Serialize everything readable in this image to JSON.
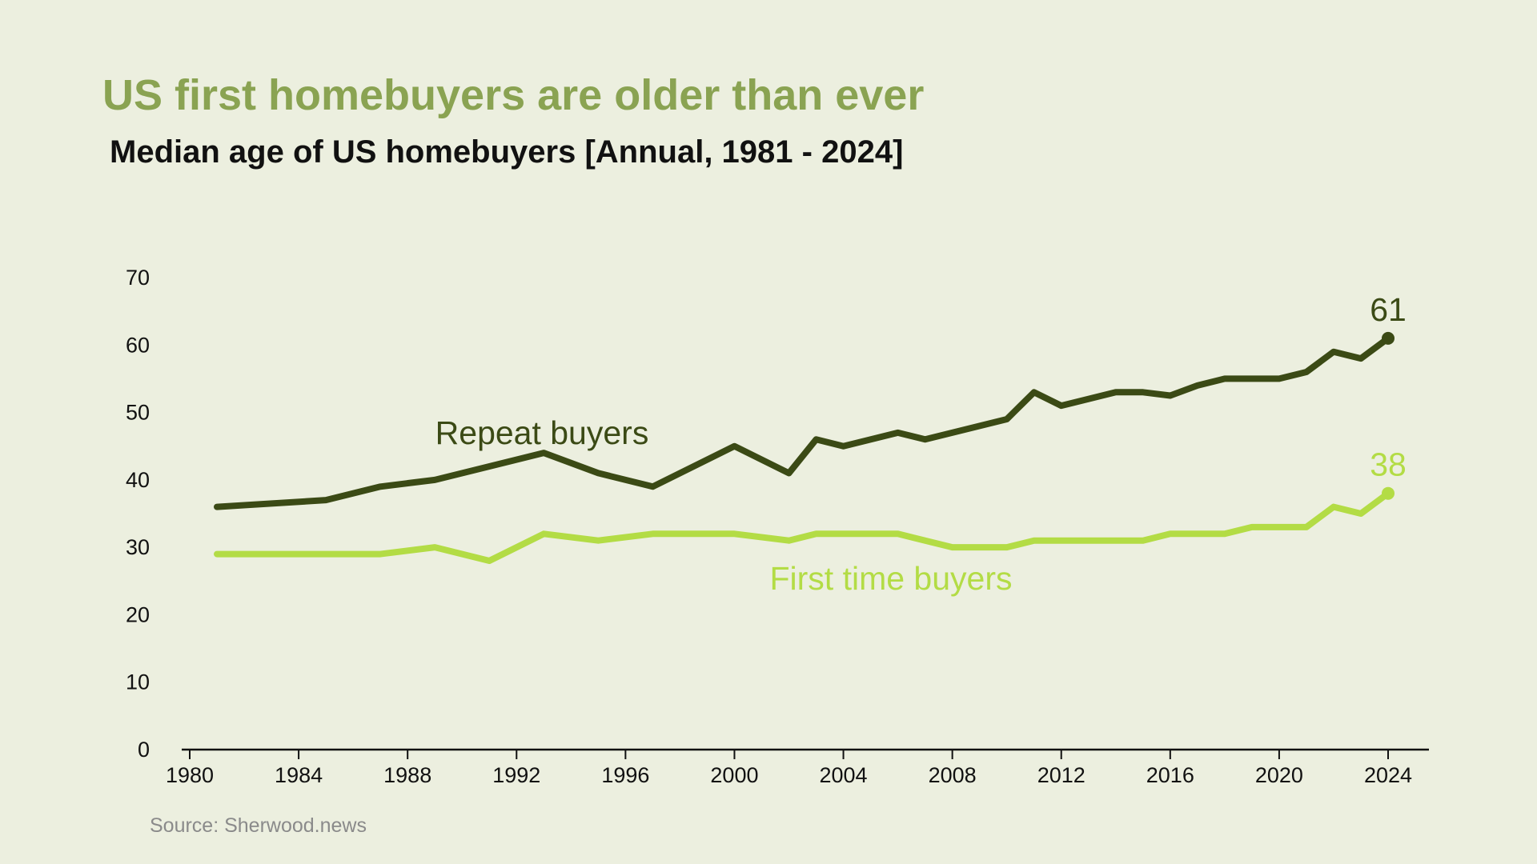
{
  "title": "US first homebuyers are older than ever",
  "subtitle": "Median age of US homebuyers [Annual, 1981 - 2024]",
  "source": "Source: Sherwood.news",
  "colors": {
    "background": "#ecefdf",
    "title": "#8aa352",
    "repeat": "#3b4a15",
    "first": "#b3dc45",
    "axis": "#111111"
  },
  "chart_data": {
    "type": "line",
    "title": "US first homebuyers are older than ever",
    "subtitle": "Median age of US homebuyers [Annual, 1981 - 2024]",
    "xlabel": "",
    "ylabel": "",
    "xlim": [
      1980,
      2026
    ],
    "ylim": [
      0,
      70
    ],
    "x_ticks": [
      1980,
      1984,
      1988,
      1992,
      1996,
      2000,
      2004,
      2008,
      2012,
      2016,
      2020,
      2024
    ],
    "y_ticks": [
      0,
      10,
      20,
      30,
      40,
      50,
      60,
      70
    ],
    "grid": false,
    "legend": "none (direct labels on lines)",
    "series": [
      {
        "name": "Repeat buyers",
        "color": "#3b4a15",
        "end_label": "61",
        "x": [
          1981,
          1985,
          1987,
          1989,
          1993,
          1995,
          1997,
          2000,
          2002,
          2003,
          2004,
          2006,
          2007,
          2010,
          2011,
          2012,
          2014,
          2015,
          2016,
          2017,
          2018,
          2020,
          2021,
          2022,
          2023,
          2024
        ],
        "values": [
          36,
          37,
          39,
          40,
          44,
          41,
          39,
          45,
          41,
          46,
          45,
          47,
          46,
          49,
          53,
          51,
          53,
          53,
          52.5,
          54,
          55,
          55,
          56,
          59,
          58,
          61
        ]
      },
      {
        "name": "First time buyers",
        "color": "#b3dc45",
        "end_label": "38",
        "x": [
          1981,
          1987,
          1989,
          1991,
          1993,
          1995,
          1997,
          2000,
          2002,
          2003,
          2006,
          2008,
          2010,
          2011,
          2015,
          2016,
          2018,
          2019,
          2021,
          2022,
          2023,
          2024
        ],
        "values": [
          29,
          29,
          30,
          28,
          32,
          31,
          32,
          32,
          31,
          32,
          32,
          30,
          30,
          31,
          31,
          32,
          32,
          33,
          33,
          36,
          35,
          38
        ]
      }
    ]
  }
}
